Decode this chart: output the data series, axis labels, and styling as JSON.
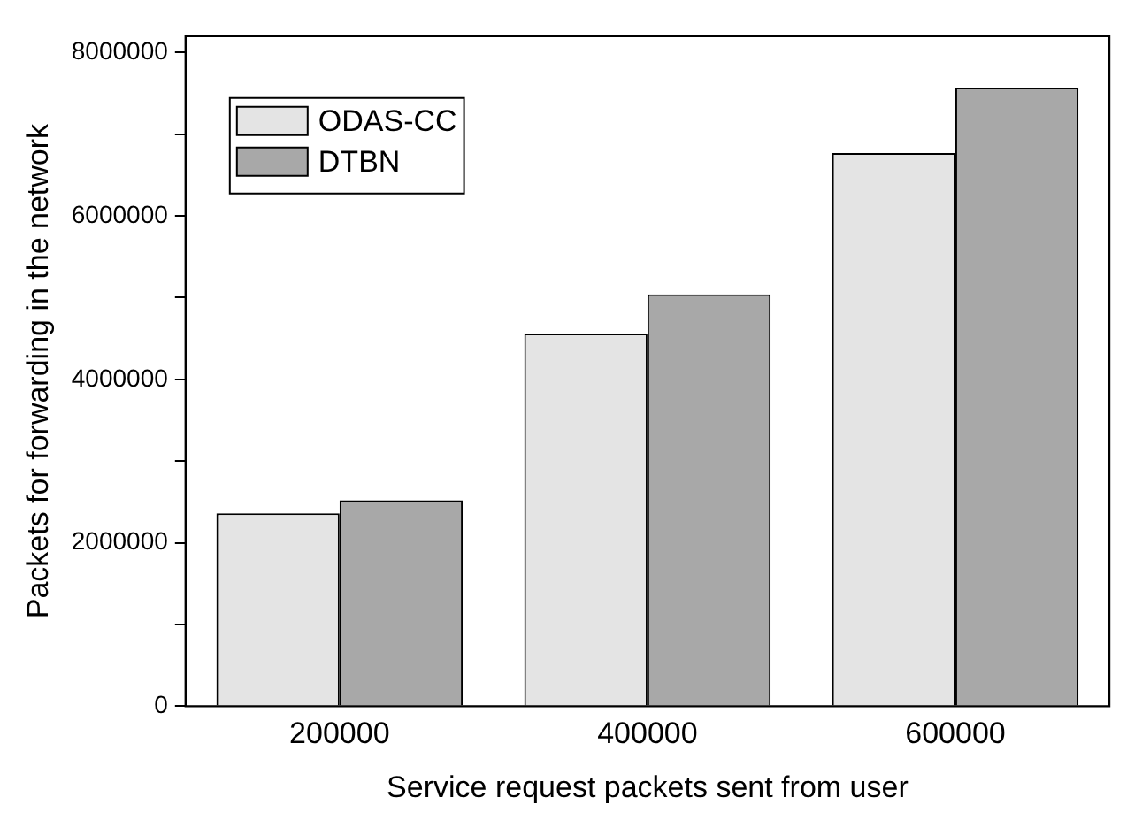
{
  "chart_data": {
    "type": "bar",
    "xlabel": "Service request packets sent from user",
    "ylabel": "Packets for forwarding in the network",
    "categories": [
      "200000",
      "400000",
      "600000"
    ],
    "series": [
      {
        "name": "ODAS-CC",
        "color": "#e4e4e4",
        "values": [
          2360000,
          4560000,
          6770000
        ]
      },
      {
        "name": "DTBN",
        "color": "#a8a8a8",
        "values": [
          2520000,
          5040000,
          7570000
        ]
      }
    ],
    "ylim": [
      0,
      8200000
    ],
    "yticks": [
      0,
      2000000,
      4000000,
      6000000,
      8000000
    ],
    "grid": false,
    "legend": "top left"
  }
}
